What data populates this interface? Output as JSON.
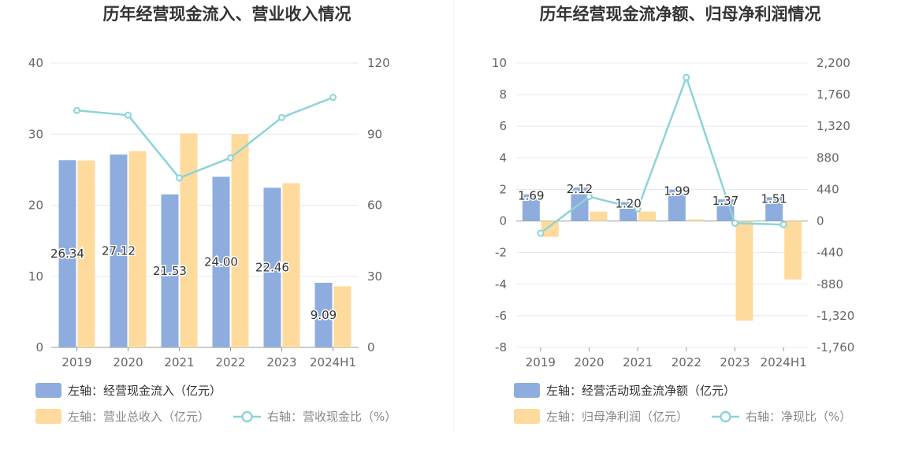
{
  "chart_data": [
    {
      "type": "bar",
      "title": "历年经营现金流入、营业收入情况",
      "categories": [
        "2019",
        "2020",
        "2021",
        "2022",
        "2023",
        "2024H1"
      ],
      "left_axis": {
        "min": 0,
        "max": 40,
        "ticks": [
          "0",
          "10",
          "20",
          "30",
          "40"
        ]
      },
      "right_axis": {
        "min": 0,
        "max": 120,
        "ticks": [
          "0",
          "30",
          "60",
          "90",
          "120"
        ]
      },
      "series": [
        {
          "name": "左轴：经营现金流入（亿元）",
          "type": "bar",
          "axis": "left",
          "color": "#8eadde",
          "values": [
            26.34,
            27.12,
            21.53,
            24.0,
            22.46,
            9.09
          ],
          "labels": [
            "26.34",
            "27.12",
            "21.53",
            "24.00",
            "22.46",
            "9.09"
          ]
        },
        {
          "name": "左轴：营业总收入（亿元）",
          "type": "bar",
          "axis": "left",
          "color": "#fedb9c",
          "values": [
            26.3,
            27.6,
            30.1,
            30.0,
            23.1,
            8.6
          ]
        },
        {
          "name": "右轴：营收现金比（%）",
          "type": "line",
          "axis": "right",
          "color": "#8dd4d8",
          "values": [
            100.0,
            98.0,
            71.5,
            80.0,
            97.0,
            105.5
          ]
        }
      ],
      "legend_placement": "bottom"
    },
    {
      "type": "bar",
      "title": "历年经营现金流净额、归母净利润情况",
      "categories": [
        "2019",
        "2020",
        "2021",
        "2022",
        "2023",
        "2024H1"
      ],
      "left_axis": {
        "min": -8,
        "max": 10,
        "ticks": [
          "-8",
          "-6",
          "-4",
          "-2",
          "0",
          "2",
          "4",
          "6",
          "8",
          "10"
        ]
      },
      "right_axis": {
        "min": -1760,
        "max": 2200,
        "ticks": [
          "-1,760",
          "-1,320",
          "-880",
          "-440",
          "0",
          "440",
          "880",
          "1,320",
          "1,760",
          "2,200"
        ]
      },
      "series": [
        {
          "name": "左轴：经营活动现金流净额（亿元）",
          "type": "bar",
          "axis": "left",
          "color": "#8eadde",
          "values": [
            1.69,
            2.12,
            1.2,
            1.99,
            1.37,
            1.51
          ],
          "labels": [
            "1.69",
            "2.12",
            "1.20",
            "1.99",
            "1.37",
            "1.51"
          ]
        },
        {
          "name": "左轴：归母净利润（亿元）",
          "type": "bar",
          "axis": "left",
          "color": "#fedb9c",
          "values": [
            -1.0,
            0.6,
            0.6,
            0.1,
            -6.3,
            -3.7
          ]
        },
        {
          "name": "右轴：净现比（%）",
          "type": "line",
          "axis": "right",
          "color": "#8dd4d8",
          "values": [
            -170,
            340,
            170,
            2000,
            -30,
            -50
          ]
        }
      ],
      "legend_placement": "bottom"
    }
  ]
}
